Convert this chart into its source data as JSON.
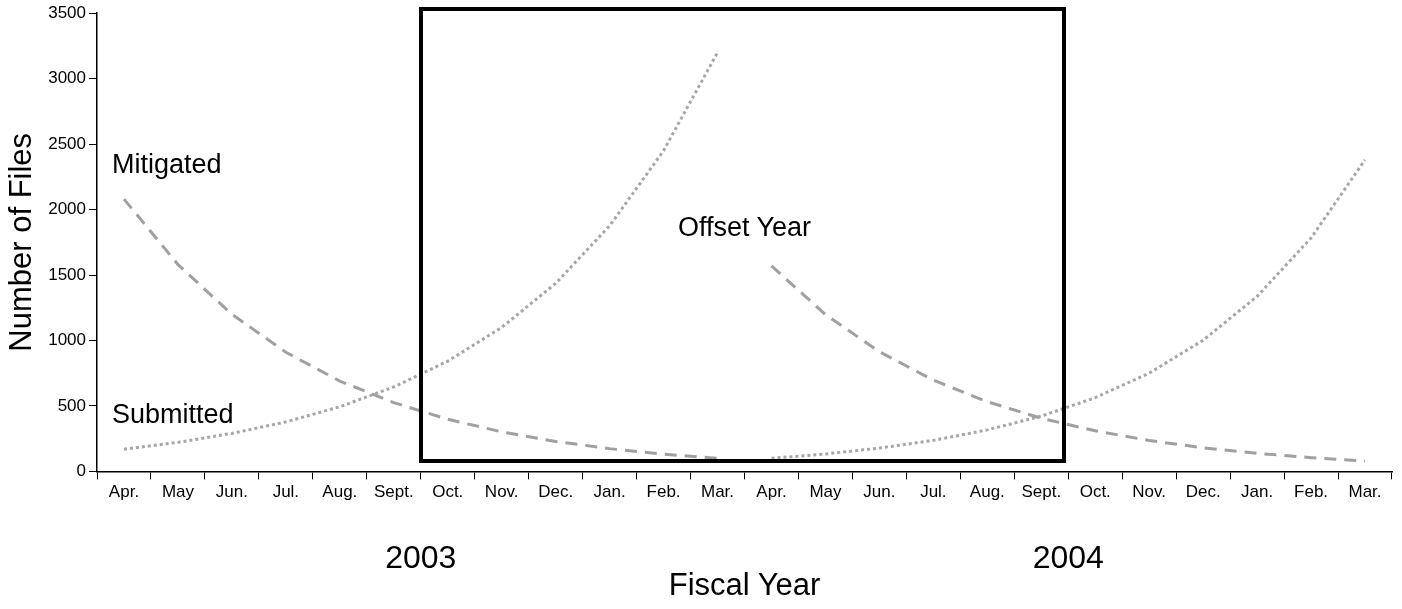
{
  "chart_data": {
    "type": "line",
    "xlabel": "Fiscal Year",
    "ylabel": "Number of Files",
    "categories": [
      "Apr.",
      "May",
      "Jun.",
      "Jul.",
      "Aug.",
      "Sept.",
      "Oct.",
      "Nov.",
      "Dec.",
      "Jan.",
      "Feb.",
      "Mar.",
      "Apr.",
      "May",
      "Jun.",
      "Jul.",
      "Aug.",
      "Sept.",
      "Oct.",
      "Nov.",
      "Dec.",
      "Jan.",
      "Feb.",
      "Mar."
    ],
    "series": [
      {
        "name": "Mitigated",
        "color": "#a0a0a0",
        "line_style": "dashed",
        "values": [
          2080,
          1580,
          1200,
          910,
          690,
          525,
          398,
          302,
          229,
          174,
          132,
          100,
          null,
          null,
          null,
          null,
          null,
          null,
          null,
          null,
          null,
          null,
          null,
          null
        ]
      },
      {
        "color": "#a0a0a0",
        "line_style": "dashed",
        "values": [
          null,
          null,
          null,
          null,
          null,
          null,
          null,
          null,
          null,
          null,
          null,
          null,
          1570,
          1198,
          914,
          697,
          532,
          406,
          310,
          236,
          180,
          138,
          105,
          80
        ]
      },
      {
        "name": "Submitted",
        "color": "#a6a6a6",
        "line_style": "dotted",
        "values": [
          170,
          222,
          290,
          378,
          494,
          645,
          842,
          1100,
          1436,
          1876,
          2450,
          3200,
          null,
          null,
          null,
          null,
          null,
          null,
          null,
          null,
          null,
          null,
          null,
          null
        ]
      },
      {
        "color": "#a6a6a6",
        "line_style": "dotted",
        "values": [
          null,
          null,
          null,
          null,
          null,
          null,
          null,
          null,
          null,
          null,
          null,
          null,
          100,
          133,
          178,
          237,
          317,
          422,
          563,
          751,
          1002,
          1337,
          1783,
          2380
        ]
      }
    ],
    "ylim": [
      0,
      3500
    ],
    "yticks": [
      0,
      500,
      1000,
      1500,
      2000,
      2500,
      3000,
      3500
    ],
    "annotations": [
      "Offset Year",
      "2003",
      "2004"
    ],
    "grid": false,
    "legend": false,
    "marker": "none"
  }
}
